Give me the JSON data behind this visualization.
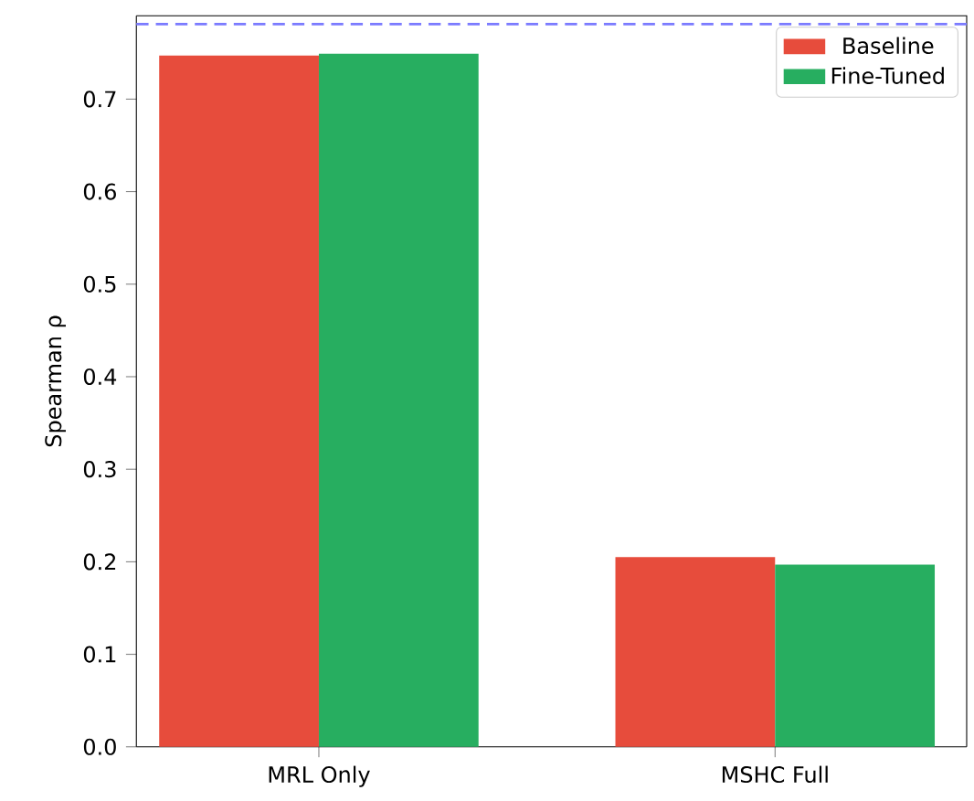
{
  "chart_data": {
    "type": "bar",
    "ylabel": "Spearman ρ",
    "categories": [
      "MRL Only",
      "MSHC Full"
    ],
    "series": [
      {
        "name": "Baseline",
        "color": "#e74c3c",
        "values": [
          0.747,
          0.205
        ]
      },
      {
        "name": "Fine-Tuned",
        "color": "#27ae60",
        "values": [
          0.749,
          0.197
        ]
      }
    ],
    "ylim": [
      0,
      0.79
    ],
    "yticks": [
      {
        "value": 0,
        "label": "0.0"
      },
      0.1,
      0.2,
      0.3,
      0.4,
      0.5,
      0.6,
      0.7
    ],
    "ref_lines": [
      {
        "axis": "y",
        "value": 0.781,
        "color": "#7b7bff",
        "line_style": "dashed"
      }
    ],
    "legend": "top right",
    "grid": false
  }
}
